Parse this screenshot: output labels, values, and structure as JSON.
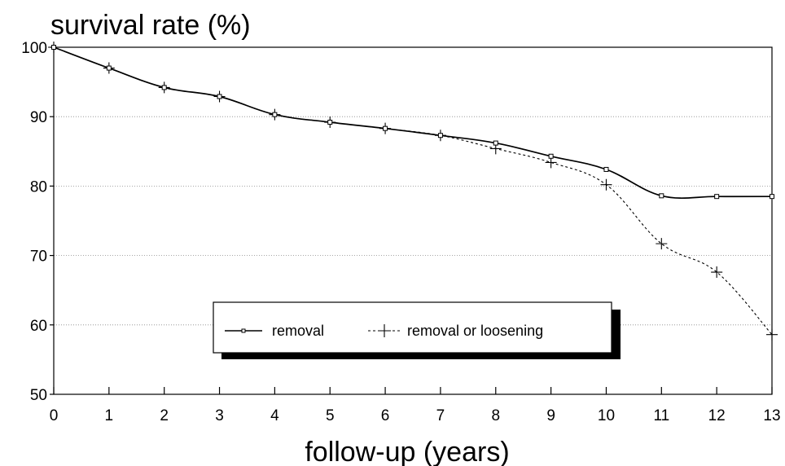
{
  "chart_data": {
    "type": "line",
    "title": "survival rate (%)",
    "xlabel": "follow-up (years)",
    "ylabel": "",
    "xlim": [
      0,
      13
    ],
    "ylim": [
      50,
      100
    ],
    "x_ticks": [
      "0",
      "1",
      "2",
      "3",
      "4",
      "5",
      "6",
      "7",
      "8",
      "9",
      "10",
      "11",
      "12",
      "13"
    ],
    "y_ticks": [
      "50",
      "60",
      "70",
      "80",
      "90",
      "100"
    ],
    "grid": "horizontal dotted",
    "legend_position": "bottom-center",
    "series": [
      {
        "name": "removal",
        "style": "solid",
        "marker": "square",
        "x": [
          0,
          1,
          2,
          3,
          4,
          5,
          6,
          7,
          8,
          9,
          10,
          11,
          12,
          13
        ],
        "y": [
          100,
          97,
          94.2,
          92.9,
          90.3,
          89.2,
          88.3,
          87.3,
          86.2,
          84.3,
          82.4,
          78.6,
          78.5,
          78.5
        ]
      },
      {
        "name": "removal or loosening",
        "style": "dashed",
        "marker": "plus",
        "x": [
          0,
          1,
          2,
          3,
          4,
          5,
          6,
          7,
          8,
          9,
          10,
          11,
          12,
          13
        ],
        "y": [
          100,
          97,
          94.2,
          92.9,
          90.3,
          89.2,
          88.3,
          87.3,
          85.4,
          83.4,
          80.2,
          71.7,
          67.6,
          58.6
        ]
      }
    ],
    "colors": {
      "line": "#000000",
      "grid": "#8a8a8a",
      "background": "#ffffff"
    }
  }
}
